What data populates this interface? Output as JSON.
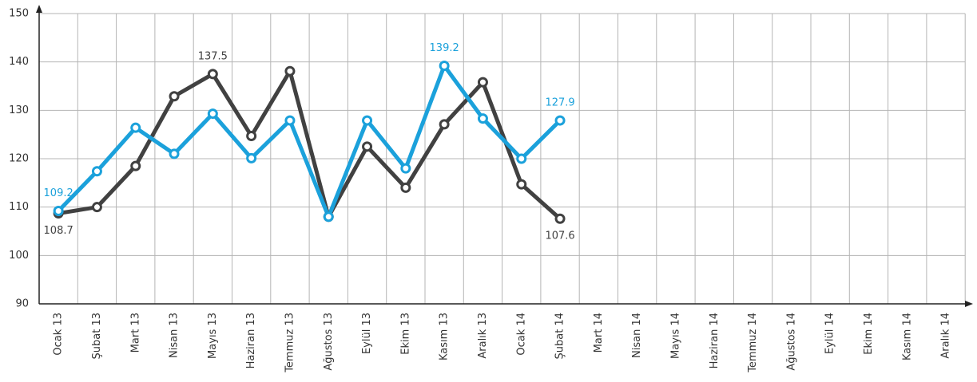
{
  "chart_data": {
    "type": "line",
    "categories": [
      "Ocak 13",
      "Şubat 13",
      "Mart 13",
      "Nisan 13",
      "Mayıs 13",
      "Haziran 13",
      "Temmuz 13",
      "Ağustos 13",
      "Eylül 13",
      "Ekim 13",
      "Kasım 13",
      "Aralık 13",
      "Ocak 14",
      "Şubat 14",
      "Mart 14",
      "Nisan 14",
      "Mayıs 14",
      "Haziran 14",
      "Temmuz 14",
      "Ağustos 14",
      "Eylül 14",
      "Ekim 14",
      "Kasım 14",
      "Aralık 14"
    ],
    "series": [
      {
        "color": "#414141",
        "values": [
          108.7,
          110,
          118.5,
          132.9,
          137.5,
          124.7,
          138.1,
          108,
          122.5,
          114,
          127.1,
          135.8,
          114.7,
          107.6,
          null,
          null,
          null,
          null,
          null,
          null,
          null,
          null,
          null,
          null
        ],
        "value_labels": [
          "108.7",
          null,
          null,
          null,
          "137.5",
          null,
          null,
          null,
          null,
          null,
          null,
          null,
          null,
          "107.6",
          null,
          null,
          null,
          null,
          null,
          null,
          null,
          null,
          null,
          null
        ]
      },
      {
        "color": "#1ba1db",
        "values": [
          109.2,
          117.4,
          126.4,
          121,
          129.3,
          120.1,
          127.9,
          108,
          127.9,
          118,
          139.2,
          128.3,
          120,
          127.9,
          null,
          null,
          null,
          null,
          null,
          null,
          null,
          null,
          null,
          null
        ],
        "value_labels": [
          "109.2",
          null,
          null,
          null,
          null,
          null,
          null,
          null,
          null,
          null,
          "139.2",
          null,
          null,
          "127.9",
          null,
          null,
          null,
          null,
          null,
          null,
          null,
          null,
          null,
          null
        ]
      }
    ],
    "ylim": [
      90,
      150
    ],
    "yticks": [
      90,
      100,
      110,
      120,
      130,
      140,
      150
    ],
    "grid": true
  }
}
